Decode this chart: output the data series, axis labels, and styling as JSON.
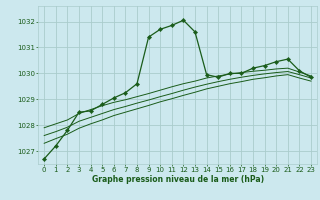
{
  "background_color": "#cce8ee",
  "grid_color": "#aacccc",
  "line_color": "#1a5c1a",
  "title": "Graphe pression niveau de la mer (hPa)",
  "xlim": [
    -0.5,
    23.5
  ],
  "ylim": [
    1026.5,
    1032.6
  ],
  "yticks": [
    1027,
    1028,
    1029,
    1030,
    1031,
    1032
  ],
  "xticks": [
    0,
    1,
    2,
    3,
    4,
    5,
    6,
    7,
    8,
    9,
    10,
    11,
    12,
    13,
    14,
    15,
    16,
    17,
    18,
    19,
    20,
    21,
    22,
    23
  ],
  "series_main": {
    "x": [
      0,
      1,
      2,
      3,
      4,
      5,
      6,
      7,
      8,
      9,
      10,
      11,
      12,
      13,
      14,
      15,
      16,
      17,
      18,
      19,
      20,
      21,
      22,
      23
    ],
    "y": [
      1026.7,
      1027.2,
      1027.8,
      1028.5,
      1028.55,
      1028.8,
      1029.05,
      1029.25,
      1029.6,
      1031.4,
      1031.7,
      1031.85,
      1032.05,
      1031.6,
      1029.95,
      1029.85,
      1030.0,
      1030.0,
      1030.2,
      1030.3,
      1030.45,
      1030.55,
      1030.1,
      1029.85
    ]
  },
  "series_a": {
    "x": [
      0,
      1,
      2,
      3,
      4,
      5,
      6,
      7,
      8,
      9,
      10,
      11,
      12,
      13,
      14,
      15,
      16,
      17,
      18,
      19,
      20,
      21,
      22,
      23
    ],
    "y": [
      1027.9,
      1028.05,
      1028.2,
      1028.45,
      1028.6,
      1028.75,
      1028.88,
      1028.98,
      1029.1,
      1029.22,
      1029.35,
      1029.48,
      1029.6,
      1029.7,
      1029.82,
      1029.9,
      1029.97,
      1030.03,
      1030.08,
      1030.12,
      1030.17,
      1030.2,
      1030.05,
      1029.9
    ]
  },
  "series_b": {
    "x": [
      0,
      1,
      2,
      3,
      4,
      5,
      6,
      7,
      8,
      9,
      10,
      11,
      12,
      13,
      14,
      15,
      16,
      17,
      18,
      19,
      20,
      21,
      22,
      23
    ],
    "y": [
      1027.6,
      1027.75,
      1027.92,
      1028.15,
      1028.3,
      1028.45,
      1028.6,
      1028.72,
      1028.85,
      1028.97,
      1029.1,
      1029.22,
      1029.35,
      1029.47,
      1029.58,
      1029.68,
      1029.77,
      1029.85,
      1029.92,
      1029.98,
      1030.03,
      1030.07,
      1029.95,
      1029.82
    ]
  },
  "series_c": {
    "x": [
      0,
      1,
      2,
      3,
      4,
      5,
      6,
      7,
      8,
      9,
      10,
      11,
      12,
      13,
      14,
      15,
      16,
      17,
      18,
      19,
      20,
      21,
      22,
      23
    ],
    "y": [
      1027.3,
      1027.48,
      1027.65,
      1027.88,
      1028.05,
      1028.2,
      1028.37,
      1028.5,
      1028.63,
      1028.76,
      1028.9,
      1029.02,
      1029.15,
      1029.27,
      1029.4,
      1029.5,
      1029.6,
      1029.68,
      1029.77,
      1029.83,
      1029.9,
      1029.95,
      1029.82,
      1029.7
    ]
  }
}
